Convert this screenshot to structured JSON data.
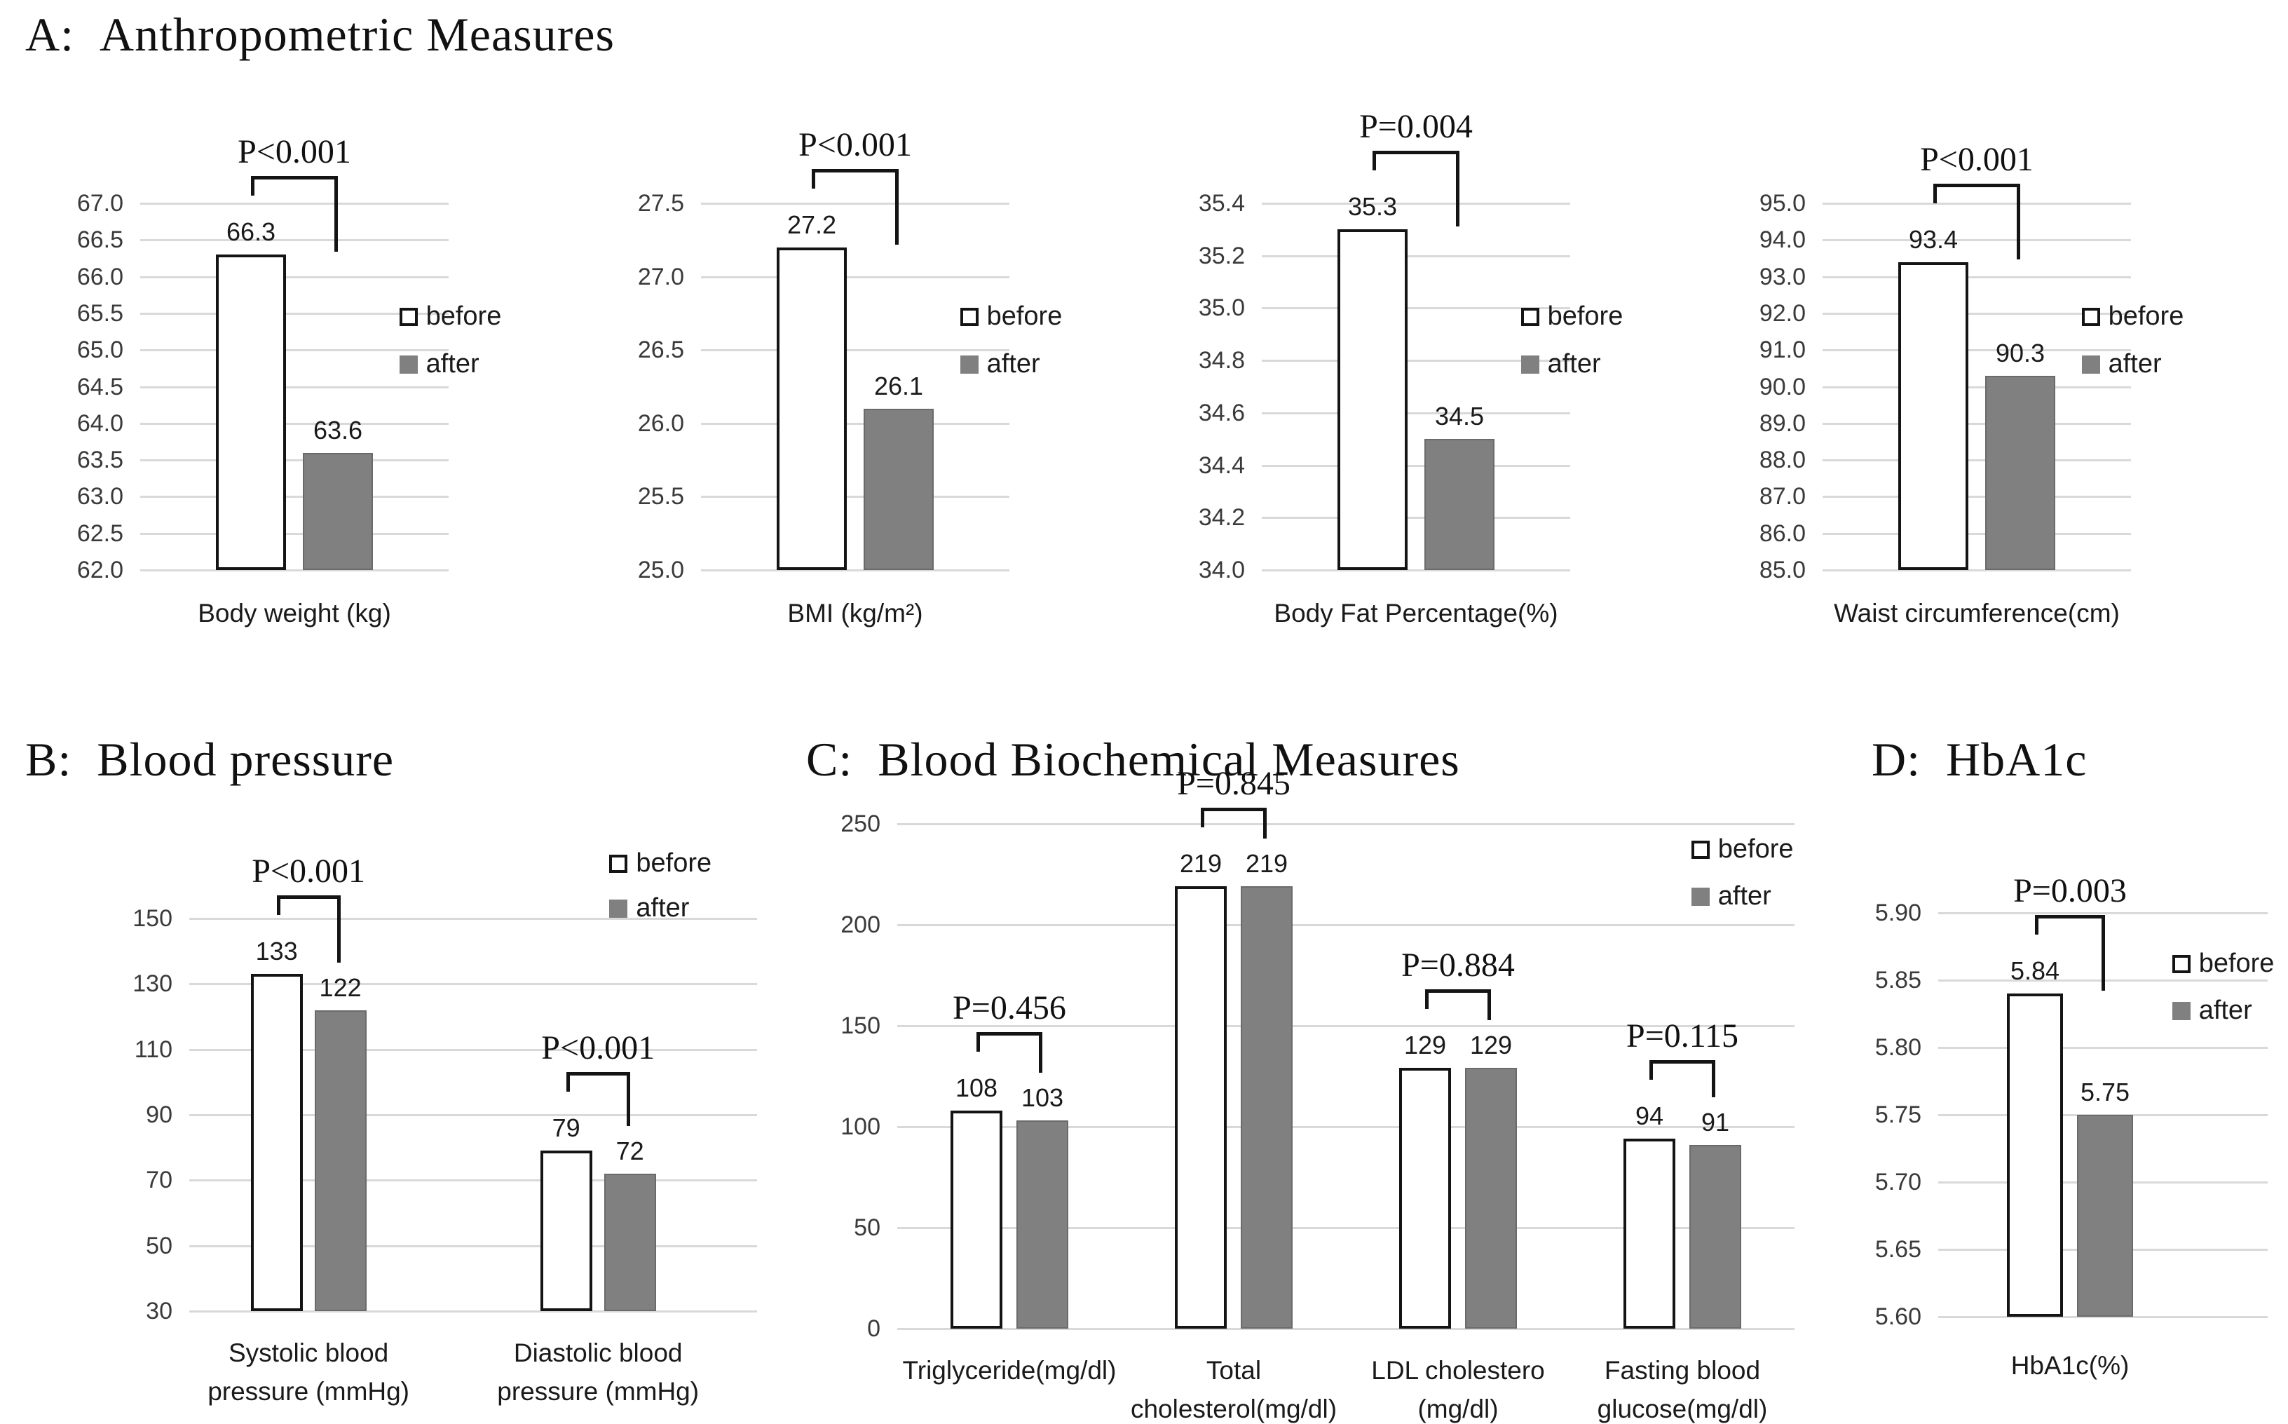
{
  "panels": [
    {
      "prefix": "A:",
      "title": "Anthropometric Measures"
    },
    {
      "prefix": "B:",
      "title": "Blood pressure"
    },
    {
      "prefix": "C:",
      "title": "Blood Biochemical Measures"
    },
    {
      "prefix": "D:",
      "title": "HbA1c"
    }
  ],
  "legend": {
    "before": "before",
    "after": "after"
  },
  "colors": {
    "before_fill": "#ffffff",
    "before_border": "#141414",
    "after_fill": "#808080",
    "after_border": "#6a6a6a",
    "gridline": "#d9d9d9",
    "bracket": "#141414",
    "text": "#1a1a1a"
  },
  "chart_data": [
    {
      "type": "bar",
      "panel": "A",
      "categories": [
        [
          "Body weight (kg)"
        ]
      ],
      "series": [
        {
          "name": "before",
          "values": [
            66.3
          ]
        },
        {
          "name": "after",
          "values": [
            63.6
          ]
        }
      ],
      "p_values": [
        "P<0.001"
      ],
      "ylim": [
        62.0,
        67.0
      ],
      "ytick_step": 0.5,
      "ytick_decimals": 1,
      "value_decimals": 1,
      "grid": true,
      "legend_position": "right-middle"
    },
    {
      "type": "bar",
      "panel": "A",
      "categories": [
        [
          "BMI (kg/m²)"
        ]
      ],
      "series": [
        {
          "name": "before",
          "values": [
            27.2
          ]
        },
        {
          "name": "after",
          "values": [
            26.1
          ]
        }
      ],
      "p_values": [
        "P<0.001"
      ],
      "ylim": [
        25.0,
        27.5
      ],
      "ytick_step": 0.5,
      "ytick_decimals": 1,
      "value_decimals": 1,
      "grid": true,
      "legend_position": "right-middle"
    },
    {
      "type": "bar",
      "panel": "A",
      "categories": [
        [
          "Body Fat Percentage(%)"
        ]
      ],
      "series": [
        {
          "name": "before",
          "values": [
            35.3
          ]
        },
        {
          "name": "after",
          "values": [
            34.5
          ]
        }
      ],
      "p_values": [
        "P=0.004"
      ],
      "ylim": [
        34.0,
        35.4
      ],
      "ytick_step": 0.2,
      "ytick_decimals": 1,
      "value_decimals": 1,
      "grid": true,
      "legend_position": "right-middle"
    },
    {
      "type": "bar",
      "panel": "A",
      "categories": [
        [
          "Waist circumference(cm)"
        ]
      ],
      "series": [
        {
          "name": "before",
          "values": [
            93.4
          ]
        },
        {
          "name": "after",
          "values": [
            90.3
          ]
        }
      ],
      "p_values": [
        "P<0.001"
      ],
      "ylim": [
        85.0,
        95.0
      ],
      "ytick_step": 1.0,
      "ytick_decimals": 1,
      "value_decimals": 1,
      "grid": true,
      "legend_position": "right-middle"
    },
    {
      "type": "bar",
      "panel": "B",
      "categories": [
        [
          "Systolic blood",
          "pressure (mmHg)"
        ],
        [
          "Diastolic blood",
          "pressure (mmHg)"
        ]
      ],
      "series": [
        {
          "name": "before",
          "values": [
            133,
            79
          ]
        },
        {
          "name": "after",
          "values": [
            122,
            72
          ]
        }
      ],
      "p_values": [
        "P<0.001",
        "P<0.001"
      ],
      "ylim": [
        30,
        150
      ],
      "ytick_step": 20,
      "ytick_decimals": 0,
      "value_decimals": 0,
      "grid": true,
      "legend_position": "top-right"
    },
    {
      "type": "bar",
      "panel": "C",
      "categories": [
        [
          "Triglyceride(mg/dl)"
        ],
        [
          "Total",
          "cholesterol(mg/dl)"
        ],
        [
          "LDL cholestero",
          "(mg/dl)"
        ],
        [
          "Fasting blood",
          "glucose(mg/dl)"
        ]
      ],
      "series": [
        {
          "name": "before",
          "values": [
            108,
            219,
            129,
            94
          ]
        },
        {
          "name": "after",
          "values": [
            103,
            219,
            129,
            91
          ]
        }
      ],
      "p_values": [
        "P=0.456",
        "P=0.845",
        "P=0.884",
        "P=0.115"
      ],
      "ylim": [
        0,
        250
      ],
      "ytick_step": 50,
      "ytick_decimals": 0,
      "value_decimals": 0,
      "grid": true,
      "legend_position": "top-right"
    },
    {
      "type": "bar",
      "panel": "D",
      "categories": [
        [
          "HbA1c(%)"
        ]
      ],
      "series": [
        {
          "name": "before",
          "values": [
            5.84
          ]
        },
        {
          "name": "after",
          "values": [
            5.75
          ]
        }
      ],
      "p_values": [
        "P=0.003"
      ],
      "ylim": [
        5.6,
        5.9
      ],
      "ytick_step": 0.05,
      "ytick_decimals": 2,
      "value_decimals": 2,
      "grid": true,
      "legend_position": "right-upper"
    }
  ]
}
